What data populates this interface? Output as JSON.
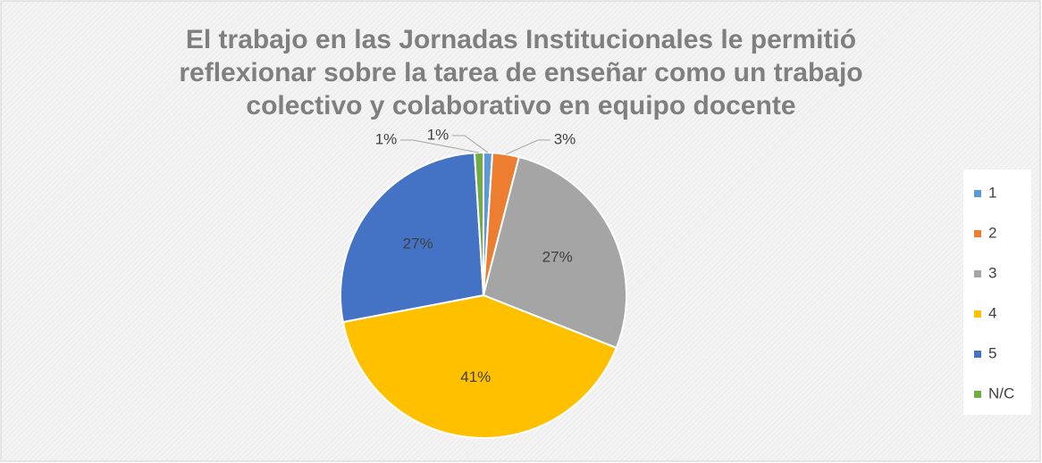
{
  "chart_data": {
    "type": "pie",
    "title": "El trabajo en las Jornadas Institucionales le permitió reflexionar sobre la tarea de enseñar como un trabajo colectivo y colaborativo en equipo docente",
    "categories": [
      "1",
      "2",
      "3",
      "4",
      "5",
      "N/C"
    ],
    "values": [
      1,
      3,
      27,
      41,
      27,
      1
    ],
    "value_labels": [
      "1%",
      "3%",
      "27%",
      "41%",
      "27%",
      "1%"
    ],
    "colors": [
      "#5b9bd5",
      "#ed7d31",
      "#a5a5a5",
      "#ffc000",
      "#4472c4",
      "#70ad47"
    ],
    "legend": "right"
  }
}
